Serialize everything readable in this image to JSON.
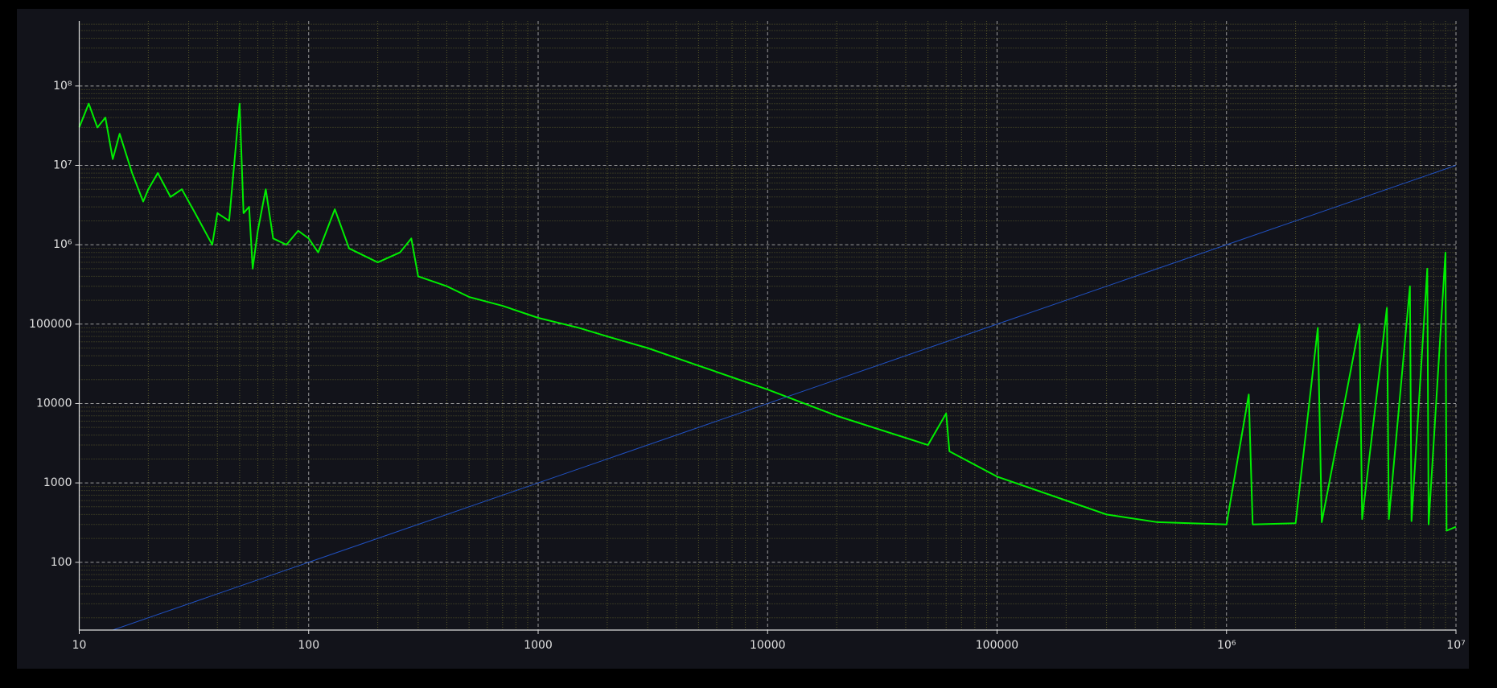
{
  "chart_data": {
    "type": "line",
    "xscale": "log",
    "yscale": "log",
    "xlim": [
      10,
      10000000
    ],
    "ylim": [
      14,
      660000000
    ],
    "xticks": [
      10,
      100,
      1000,
      10000,
      100000,
      {
        "value": 1000000,
        "label": "10⁶"
      },
      {
        "value": 10000000,
        "label": "10⁷"
      }
    ],
    "yticks": [
      100,
      1000,
      10000,
      100000,
      {
        "value": 1000000,
        "label": "10⁶"
      },
      {
        "value": 10000000,
        "label": "10⁷"
      },
      {
        "value": 100000000,
        "label": "10⁸"
      }
    ],
    "grid": true,
    "minor_grid": true,
    "series": [
      {
        "color": "#00ee00",
        "x": [
          10,
          11,
          12,
          13,
          14,
          15,
          17,
          19,
          20,
          22,
          25,
          28,
          32,
          38,
          40,
          45,
          50,
          52,
          55,
          57,
          60,
          65,
          70,
          80,
          90,
          100,
          110,
          130,
          150,
          200,
          250,
          280,
          300,
          400,
          500,
          700,
          1000,
          1500,
          2000,
          3000,
          5000,
          10000,
          20000,
          50000,
          60000,
          62000,
          100000,
          200000,
          300000,
          500000,
          1000000,
          1250000,
          1300000,
          2000000,
          2500000,
          2600000,
          3800000,
          3900000,
          5000000,
          5100000,
          6300000,
          6400000,
          7500000,
          7600000,
          9000000,
          9100000,
          10000000
        ],
        "values": [
          30000000,
          60000000,
          30000000,
          40000000,
          12000000,
          25000000,
          8000000,
          3500000,
          5000000,
          8000000,
          4000000,
          5000000,
          2500000,
          1000000,
          2500000,
          2000000,
          60000000,
          2500000,
          3000000,
          500000,
          1500000,
          5000000,
          1200000,
          1000000,
          1500000,
          1200000,
          800000,
          2800000,
          900000,
          600000,
          800000,
          1200000,
          400000,
          300000,
          220000,
          170000,
          120000,
          90000,
          70000,
          50000,
          30000,
          15000,
          7000,
          3000,
          7500,
          2500,
          1200,
          600,
          400,
          320,
          300,
          13000,
          300,
          310,
          90000,
          320,
          100000,
          350,
          160000,
          350,
          300000,
          330,
          500000,
          300,
          800000,
          250,
          280
        ]
      },
      {
        "color": "#2050c0",
        "x": [
          14,
          10000000
        ],
        "values": [
          14,
          10000000
        ]
      }
    ]
  }
}
